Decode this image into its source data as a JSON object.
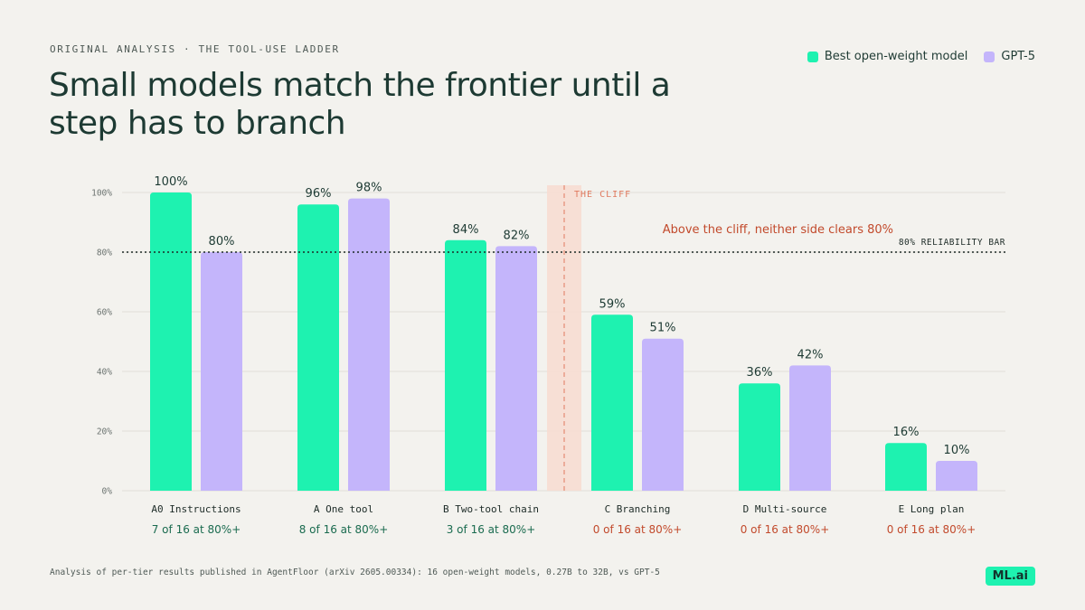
{
  "header": {
    "eyebrow": "ORIGINAL ANALYSIS · THE TOOL-USE LADDER",
    "title": "Small models match the frontier until a step has to branch"
  },
  "legend": {
    "series_a": "Best open-weight model",
    "series_b": "GPT-5"
  },
  "colors": {
    "series_a": "#1ef2b0",
    "series_b": "#c4b5fb",
    "pass_text": "#1a6b4f",
    "fail_text": "#c24a2c",
    "cliff": "#e07a5f"
  },
  "chart_data": {
    "type": "bar",
    "categories": [
      "A0 Instructions",
      "A One tool",
      "B Two-tool chain",
      "C Branching",
      "D Multi-source",
      "E Long plan"
    ],
    "series": [
      {
        "name": "Best open-weight model",
        "values": [
          100,
          96,
          84,
          59,
          36,
          16
        ]
      },
      {
        "name": "GPT-5",
        "values": [
          80,
          98,
          82,
          51,
          42,
          10
        ]
      }
    ],
    "data_labels": [
      [
        "100%",
        "96%",
        "84%",
        "59%",
        "36%",
        "16%"
      ],
      [
        "80%",
        "98%",
        "82%",
        "51%",
        "42%",
        "10%"
      ]
    ],
    "sub_labels": [
      "7 of 16 at 80%+",
      "8 of 16 at 80%+",
      "3 of 16 at 80%+",
      "0 of 16 at 80%+",
      "0 of 16 at 80%+",
      "0 of 16 at 80%+"
    ],
    "sub_label_status": [
      "pass",
      "pass",
      "pass",
      "fail",
      "fail",
      "fail"
    ],
    "yticks": [
      "0%",
      "20%",
      "40%",
      "60%",
      "80%",
      "100%"
    ],
    "ylim": [
      0,
      100
    ],
    "grid": true,
    "reference_line": {
      "value": 80,
      "label": "80% RELIABILITY BAR"
    },
    "cliff": {
      "after_category": 2,
      "label": "THE CLIFF"
    },
    "annotation": "Above the cliff, neither side clears 80%"
  },
  "footer": {
    "note": "Analysis of per-tier results published in AgentFloor (arXiv 2605.00334): 16 open-weight models, 0.27B to 32B, vs GPT-5",
    "logo": "ML.ai"
  }
}
